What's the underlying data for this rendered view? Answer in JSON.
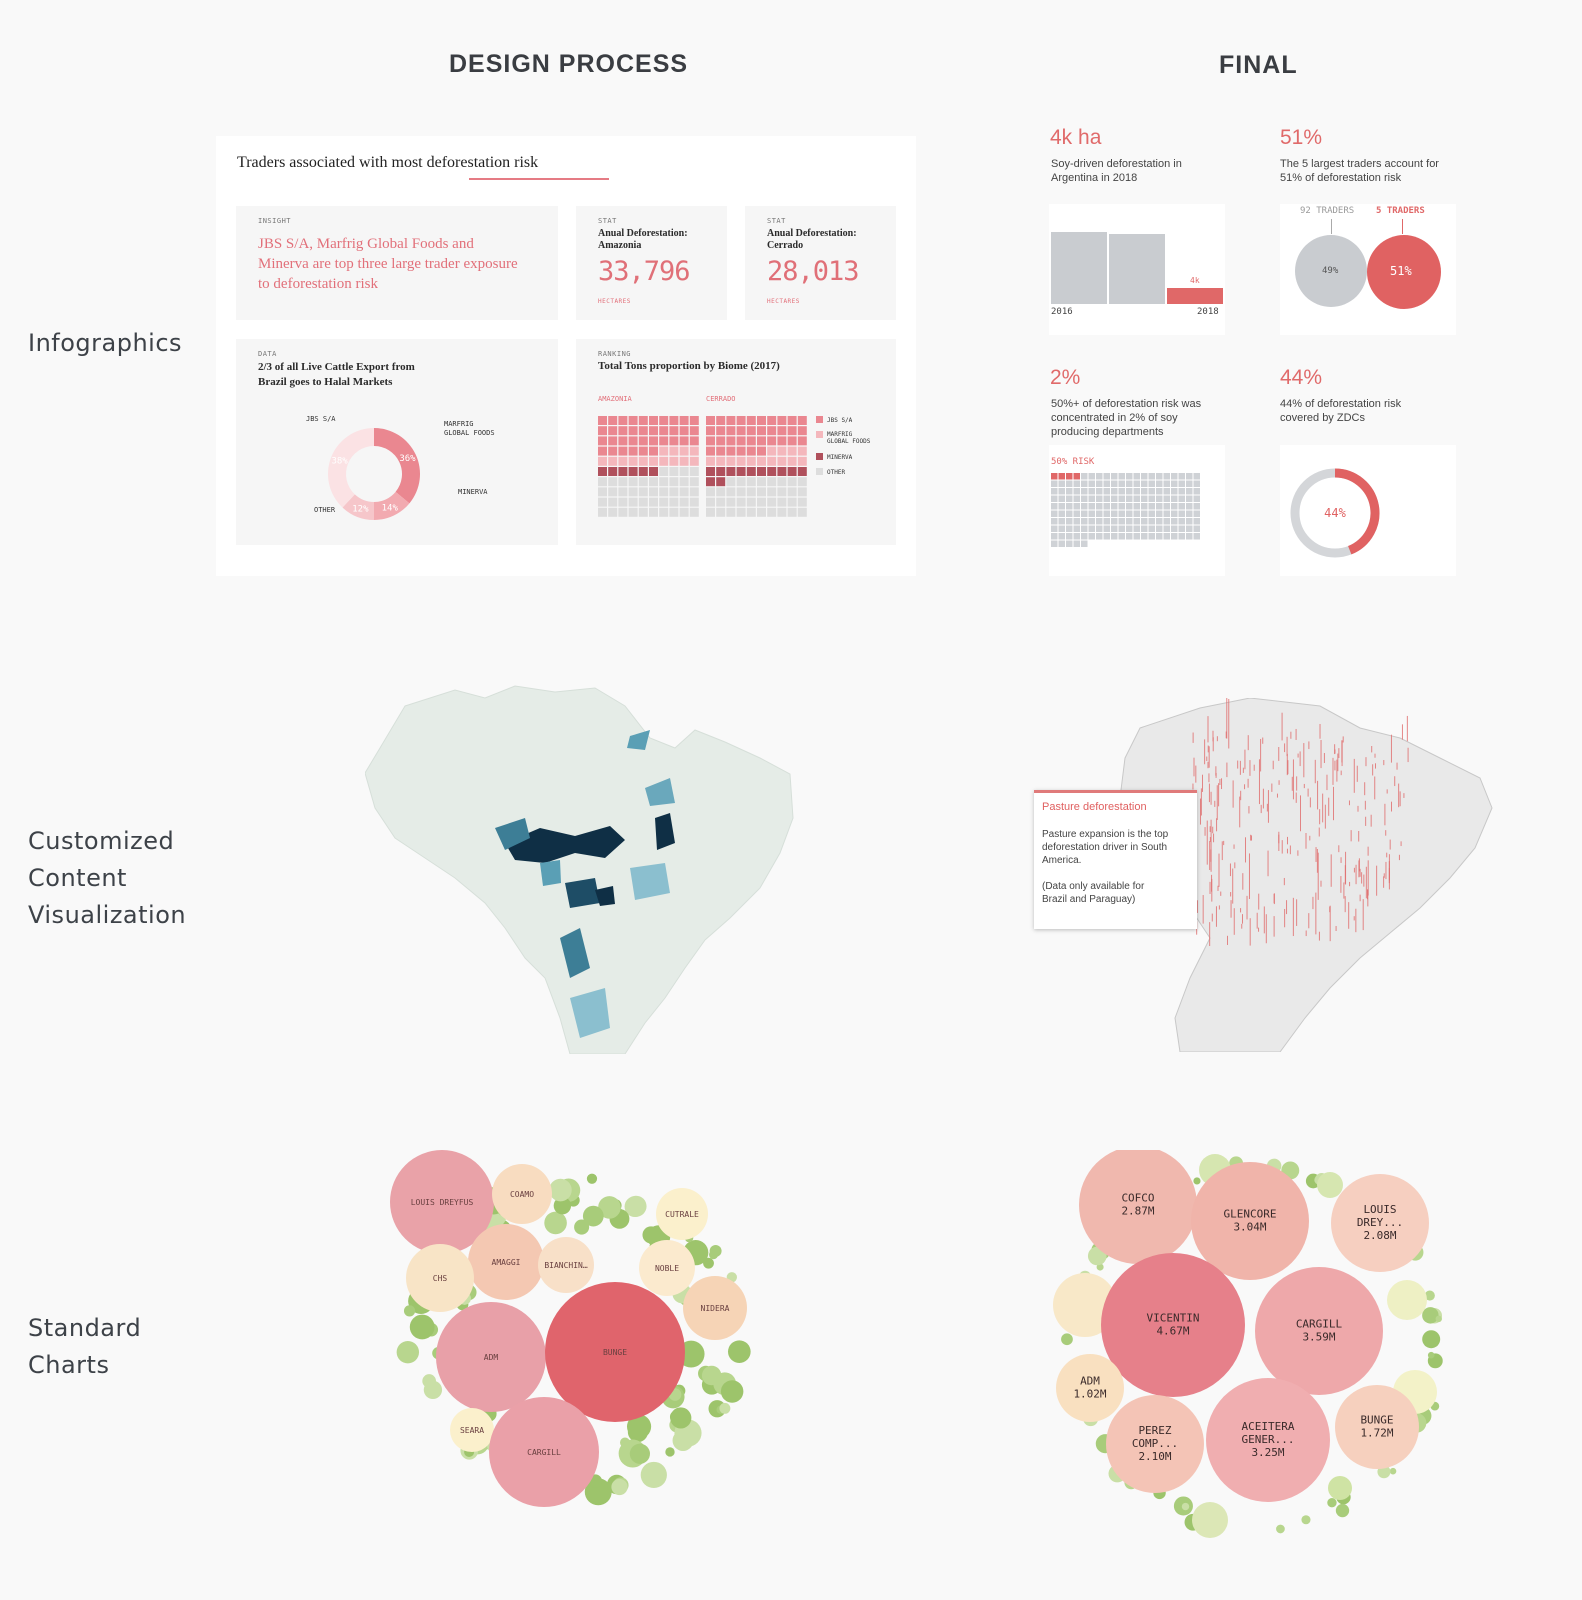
{
  "columns": {
    "design": "DESIGN PROCESS",
    "final": "FINAL"
  },
  "rows": {
    "infographics": "Infographics",
    "custom": [
      "Customized",
      "Content",
      "Visualization"
    ],
    "standard": [
      "Standard",
      "Charts"
    ]
  },
  "design_infographic": {
    "title": "Traders associated with most deforestation risk",
    "insight": {
      "tag": "INSIGHT",
      "text": "JBS S/A, Marfrig Global Foods and Minerva are top three large trader exposure to deforestation risk"
    },
    "stat1": {
      "tag": "STAT",
      "label": "Anual Deforestation: Amazonia",
      "value": "33,796",
      "unit": "HECTARES"
    },
    "stat2": {
      "tag": "STAT",
      "label": "Anual Deforestation: Cerrado",
      "value": "28,013",
      "unit": "HECTARES"
    },
    "data_card": {
      "tag": "DATA",
      "title": "2/3 of all Live Cattle Export from Brazil goes to Halal Markets",
      "slices": [
        {
          "label": "JBS S/A",
          "pct": 36,
          "text": "36%",
          "color": "#ea8790"
        },
        {
          "label": "MARFRIG GLOBAL FOODS",
          "pct": 14,
          "text": "14%",
          "color": "#f2aab0"
        },
        {
          "label": "MINERVA",
          "pct": 12,
          "text": "12%",
          "color": "#f6c6ca"
        },
        {
          "label": "OTHER",
          "pct": 38,
          "text": "38%",
          "color": "#fbe2e4"
        }
      ],
      "labels": {
        "jbs": "JBS S/A",
        "marfrig1": "MARFRIG",
        "marfrig2": "GLOBAL FOODS",
        "minerva": "MINERVA",
        "other": "OTHER"
      }
    },
    "ranking_card": {
      "tag": "RANKING",
      "title": "Total Tons proportion by Biome (2017)",
      "biomes": [
        "AMAZONIA",
        "CERRADO"
      ],
      "legend": [
        {
          "label": "JBS S/A",
          "color": "#ea8790"
        },
        {
          "label": "MARFRIG GLOBAL FOODS",
          "color": "#f4b7bc"
        },
        {
          "label": "MINERVA",
          "color": "#b0505c"
        },
        {
          "label": "OTHER",
          "color": "#dddddd"
        }
      ],
      "legend_text": {
        "jbs": "JBS S/A",
        "marfrig1": "MARFRIG",
        "marfrig2": "GLOBAL FOODS",
        "minerva": "MINERVA",
        "other": "OTHER"
      }
    }
  },
  "final_infographic": {
    "card1": {
      "head": "4k ha",
      "desc1": "Soy-driven deforestation in",
      "desc2": "Argentina in 2018",
      "bar_label": "4k",
      "x_start": "2016",
      "x_end": "2018",
      "bar_values": [
        1,
        1,
        0.2
      ]
    },
    "card2": {
      "head": "51%",
      "desc1": "The 5 largest traders account for",
      "desc2": "51% of deforestation risk",
      "label_left": "92 TRADERS",
      "label_right": "5 TRADERS",
      "left_value": "49%",
      "right_value": "51%"
    },
    "card3": {
      "head": "2%",
      "desc1": "50%+ of deforestation risk was",
      "desc2": "concentrated in 2% of soy",
      "desc3": "producing departments",
      "risk_label": "50% RISK"
    },
    "card4": {
      "head": "44%",
      "desc1": "44% of deforestation risk",
      "desc2": "covered by ZDCs",
      "value": "44%",
      "fraction": 0.44
    }
  },
  "map_tooltip": {
    "title": "Pasture deforestation",
    "line1": "Pasture expansion is the top",
    "line2": "deforestation driver in South",
    "line3": "America.",
    "line4": "(Data only available for",
    "line5": "Brazil and Paraguay)"
  },
  "design_bubbles": {
    "labels": [
      "LOUIS DREYFUS",
      "COAMO",
      "CUTRALE",
      "AMAGGI",
      "BIANCHIN…",
      "NOBLE",
      "CHS",
      "NIDERA",
      "ADM",
      "BUNGE",
      "SEARA",
      "CARGILL"
    ]
  },
  "final_bubbles": [
    {
      "name": "COFCO",
      "value": "2.87M"
    },
    {
      "name": "GLENCORE",
      "value": "3.04M"
    },
    {
      "name": "LOUIS",
      "name2": "DREY...",
      "value": "2.08M"
    },
    {
      "name": "VICENTIN",
      "value": "4.67M"
    },
    {
      "name": "CARGILL",
      "value": "3.59M"
    },
    {
      "name": "ADM",
      "value": "1.02M"
    },
    {
      "name": "PEREZ",
      "name2": "COMP...",
      "value": "2.10M"
    },
    {
      "name": "ACEITERA",
      "name2": "GENER...",
      "value": "3.25M"
    },
    {
      "name": "BUNGE",
      "value": "1.72M"
    }
  ]
}
